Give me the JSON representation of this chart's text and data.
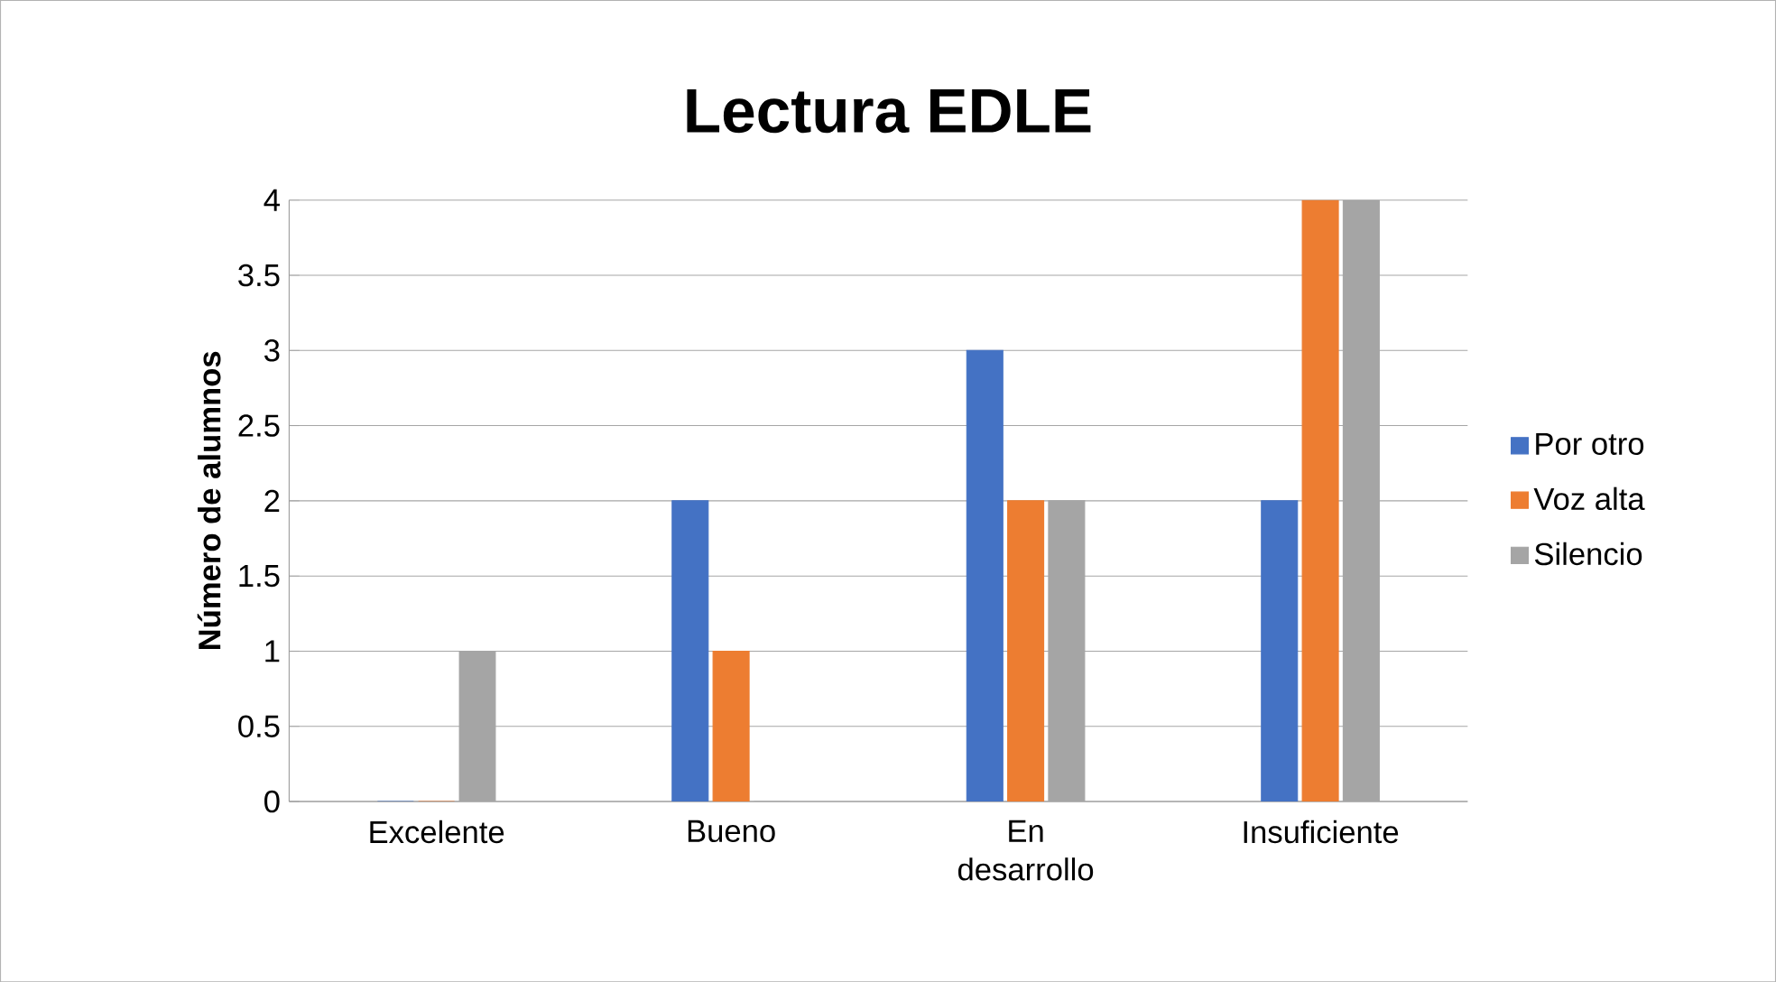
{
  "chart_data": {
    "type": "bar",
    "title": "Lectura EDLE",
    "ylabel": "Número de alumnos",
    "categories": [
      "Excelente",
      "Bueno",
      "En desarrollo",
      "Insuficiente"
    ],
    "series": [
      {
        "name": "Por otro",
        "color": "#4472c4",
        "values": [
          0,
          2,
          3,
          2
        ]
      },
      {
        "name": "Voz alta",
        "color": "#ed7d31",
        "values": [
          0,
          1,
          2,
          4
        ]
      },
      {
        "name": "Silencio",
        "color": "#a5a5a5",
        "values": [
          1,
          0,
          2,
          4
        ]
      }
    ],
    "ylim": [
      0,
      4
    ],
    "yticks": [
      0,
      0.5,
      1,
      1.5,
      2,
      2.5,
      3,
      3.5,
      4
    ],
    "grid": "y",
    "legend": "right"
  }
}
